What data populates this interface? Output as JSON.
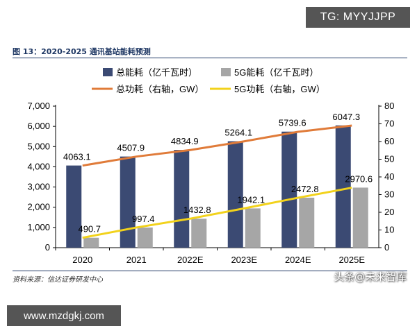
{
  "watermarks": {
    "top_right": "TG: MYYJJPP",
    "bottom_left": "www.mzdgkj.com",
    "brand": "头条@未来智库"
  },
  "figure": {
    "title": "图 13：2020-2025 通讯基站能耗预测",
    "source": "资料来源：信达证券研发中心"
  },
  "colors": {
    "total_energy_bar": "#3b4a73",
    "g5_energy_bar": "#a6a6a6",
    "total_power_line": "#e07b39",
    "g5_power_line": "#f2d21b",
    "title_rule": "#1f3864"
  },
  "chart_data": {
    "type": "bar",
    "categories": [
      "2020",
      "2021",
      "2022E",
      "2023E",
      "2024E",
      "2025E"
    ],
    "series": [
      {
        "name": "总能耗（亿千瓦时）",
        "kind": "bar",
        "axis": "left",
        "values": [
          4063.1,
          4507.9,
          4834.9,
          5264.1,
          5739.6,
          6047.3
        ],
        "labels": [
          "4063.1",
          "4507.9",
          "4834.9",
          "5264.1",
          "5739.6",
          "6047.3"
        ]
      },
      {
        "name": "5G能耗（亿千瓦时）",
        "kind": "bar",
        "axis": "left",
        "values": [
          490.7,
          997.4,
          1432.8,
          1942.1,
          2472.8,
          2970.6
        ],
        "labels": [
          "490.7",
          "997.4",
          "1432.8",
          "1942.1",
          "2472.8",
          "2970.6"
        ]
      },
      {
        "name": "总功耗（右轴，GW）",
        "kind": "line",
        "axis": "right",
        "values": [
          46.4,
          51.5,
          55.2,
          60.1,
          65.5,
          69.0
        ]
      },
      {
        "name": "5G功耗（右轴，GW）",
        "kind": "line",
        "axis": "right",
        "values": [
          5.6,
          11.4,
          16.4,
          22.2,
          28.2,
          33.9
        ]
      }
    ],
    "y_left": {
      "min": 0,
      "max": 7000,
      "step": 1000,
      "ticks": [
        "0",
        "1,000",
        "2,000",
        "3,000",
        "4,000",
        "5,000",
        "6,000",
        "7,000"
      ]
    },
    "y_right": {
      "min": 0,
      "max": 80,
      "step": 10,
      "ticks": [
        "0",
        "10",
        "20",
        "30",
        "40",
        "50",
        "60",
        "70",
        "80"
      ]
    },
    "legend_position": "top",
    "grid": false
  }
}
